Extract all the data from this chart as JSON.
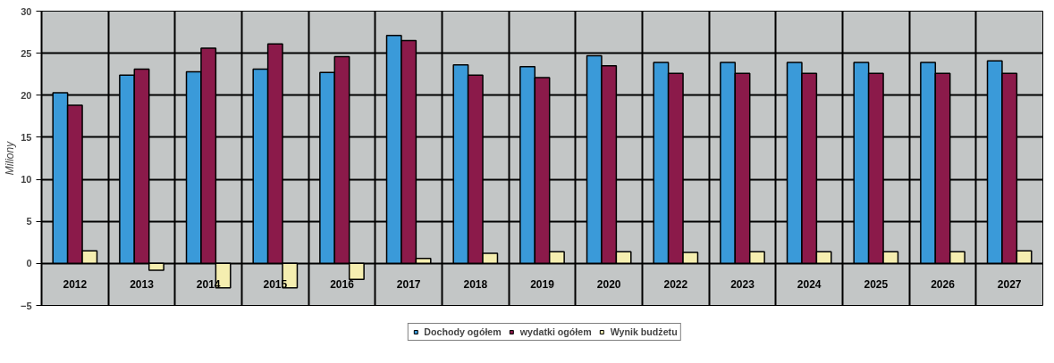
{
  "chart_data": {
    "type": "bar",
    "ylabel": "Miliony",
    "categories": [
      "2012",
      "2013",
      "2014",
      "2015",
      "2016",
      "2017",
      "2018",
      "2019",
      "2020",
      "2022",
      "2023",
      "2024",
      "2025",
      "2026",
      "2027"
    ],
    "series": [
      {
        "name": "Dochody ogółem",
        "color": "#3a9ad9",
        "values": [
          20.3,
          22.4,
          22.8,
          23.1,
          22.7,
          27.1,
          23.6,
          23.4,
          24.7,
          23.9,
          23.9,
          23.9,
          23.9,
          23.9,
          24.1
        ]
      },
      {
        "name": "wydatki ogółem",
        "color": "#8b1a4a",
        "values": [
          18.8,
          23.1,
          25.6,
          26.1,
          24.6,
          26.5,
          22.4,
          22.1,
          23.5,
          22.6,
          22.6,
          22.6,
          22.6,
          22.6,
          22.6
        ]
      },
      {
        "name": "Wynik budżetu",
        "color": "#f5eeb0",
        "values": [
          1.5,
          -0.8,
          -2.9,
          -2.9,
          -1.9,
          0.6,
          1.2,
          1.4,
          1.4,
          1.3,
          1.4,
          1.4,
          1.4,
          1.4,
          1.5
        ]
      }
    ],
    "ylim": [
      -5,
      30
    ],
    "yticks": [
      -5,
      0,
      5,
      10,
      15,
      20,
      25,
      30
    ],
    "grid": true,
    "legend": "bottom"
  }
}
